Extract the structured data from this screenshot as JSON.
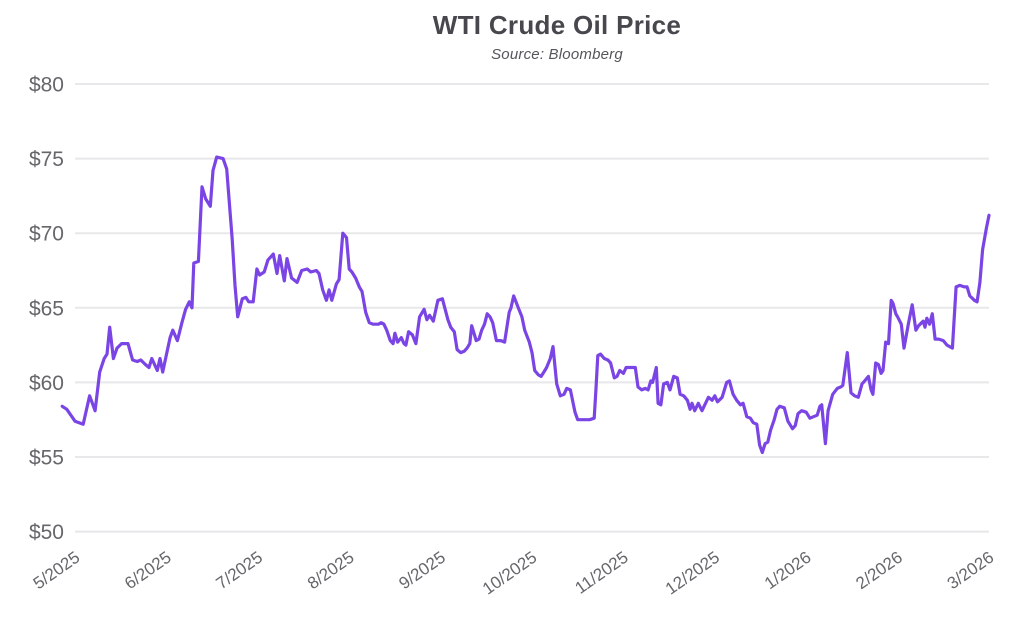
{
  "chart_data": {
    "type": "line",
    "title": "WTI Crude Oil Price",
    "subtitle": "Source: Bloomberg",
    "legend": "none",
    "grid": "horizontal-only",
    "grid_color": "#e8e8ea",
    "text_color": "#66666b",
    "y_axis": {
      "tick_labels": [
        "$80",
        "$75",
        "$70",
        "$65",
        "$60",
        "$55",
        "$50"
      ],
      "tick_values": [
        80,
        75,
        70,
        65,
        60,
        55,
        50
      ],
      "range": [
        50,
        80
      ],
      "unit": "USD per barrel"
    },
    "x_axis": {
      "tick_labels": [
        "5/2025",
        "6/2025",
        "7/2025",
        "8/2025",
        "9/2025",
        "10/2025",
        "11/2025",
        "12/2025",
        "1/2026",
        "2/2026",
        "3/2026"
      ],
      "tick_positions_months": [
        0,
        1,
        2,
        3,
        4,
        5,
        6,
        7,
        8,
        9,
        10
      ],
      "label_rotation_deg": -35
    },
    "series": [
      {
        "name": "WTI crude oil price (USD/barrel)",
        "color": "#7B45E6",
        "points": [
          [
            -0.14,
            58.4
          ],
          [
            -0.09,
            58.2
          ],
          [
            0,
            57.4
          ],
          [
            0.09,
            57.2
          ],
          [
            0.16,
            59.1
          ],
          [
            0.22,
            58.1
          ],
          [
            0.27,
            60.7
          ],
          [
            0.32,
            61.6
          ],
          [
            0.35,
            61.9
          ],
          [
            0.38,
            63.7
          ],
          [
            0.42,
            61.6
          ],
          [
            0.46,
            62.3
          ],
          [
            0.51,
            62.6
          ],
          [
            0.58,
            62.6
          ],
          [
            0.63,
            61.5
          ],
          [
            0.68,
            61.4
          ],
          [
            0.72,
            61.5
          ],
          [
            0.77,
            61.2
          ],
          [
            0.81,
            61
          ],
          [
            0.84,
            61.6
          ],
          [
            0.9,
            60.8
          ],
          [
            0.93,
            61.6
          ],
          [
            0.96,
            60.7
          ],
          [
            1.04,
            63
          ],
          [
            1.07,
            63.5
          ],
          [
            1.12,
            62.8
          ],
          [
            1.17,
            64
          ],
          [
            1.21,
            64.9
          ],
          [
            1.25,
            65.4
          ],
          [
            1.28,
            65
          ],
          [
            1.3,
            68
          ],
          [
            1.35,
            68.1
          ],
          [
            1.39,
            73.1
          ],
          [
            1.43,
            72.3
          ],
          [
            1.48,
            71.8
          ],
          [
            1.51,
            74.2
          ],
          [
            1.55,
            75.1
          ],
          [
            1.62,
            75
          ],
          [
            1.66,
            74.3
          ],
          [
            1.72,
            69.6
          ],
          [
            1.75,
            66.5
          ],
          [
            1.78,
            64.4
          ],
          [
            1.83,
            65.6
          ],
          [
            1.87,
            65.7
          ],
          [
            1.9,
            65.4
          ],
          [
            1.95,
            65.4
          ],
          [
            1.99,
            67.6
          ],
          [
            2.02,
            67.2
          ],
          [
            2.07,
            67.4
          ],
          [
            2.11,
            68.2
          ],
          [
            2.17,
            68.6
          ],
          [
            2.21,
            67.3
          ],
          [
            2.24,
            68.5
          ],
          [
            2.29,
            66.8
          ],
          [
            2.32,
            68.3
          ],
          [
            2.37,
            67
          ],
          [
            2.43,
            66.7
          ],
          [
            2.48,
            67.5
          ],
          [
            2.54,
            67.6
          ],
          [
            2.58,
            67.4
          ],
          [
            2.64,
            67.5
          ],
          [
            2.67,
            67.3
          ],
          [
            2.71,
            66.2
          ],
          [
            2.75,
            65.5
          ],
          [
            2.78,
            66.2
          ],
          [
            2.81,
            65.5
          ],
          [
            2.86,
            66.6
          ],
          [
            2.89,
            66.9
          ],
          [
            2.93,
            70
          ],
          [
            2.97,
            69.7
          ],
          [
            3,
            67.6
          ],
          [
            3.03,
            67.4
          ],
          [
            3.07,
            67
          ],
          [
            3.11,
            66.4
          ],
          [
            3.14,
            66.1
          ],
          [
            3.18,
            64.7
          ],
          [
            3.22,
            64
          ],
          [
            3.26,
            63.9
          ],
          [
            3.32,
            63.9
          ],
          [
            3.35,
            64
          ],
          [
            3.38,
            63.9
          ],
          [
            3.41,
            63.5
          ],
          [
            3.45,
            62.8
          ],
          [
            3.48,
            62.6
          ],
          [
            3.5,
            63.3
          ],
          [
            3.53,
            62.7
          ],
          [
            3.57,
            63
          ],
          [
            3.6,
            62.6
          ],
          [
            3.62,
            62.5
          ],
          [
            3.65,
            63.4
          ],
          [
            3.69,
            63.2
          ],
          [
            3.73,
            62.6
          ],
          [
            3.77,
            64.4
          ],
          [
            3.82,
            64.9
          ],
          [
            3.85,
            64.2
          ],
          [
            3.88,
            64.5
          ],
          [
            3.92,
            64.1
          ],
          [
            3.97,
            65.5
          ],
          [
            4.02,
            65.6
          ],
          [
            4.08,
            64.2
          ],
          [
            4.11,
            63.7
          ],
          [
            4.15,
            63.4
          ],
          [
            4.18,
            62.2
          ],
          [
            4.22,
            62
          ],
          [
            4.26,
            62.1
          ],
          [
            4.29,
            62.3
          ],
          [
            4.32,
            62.6
          ],
          [
            4.34,
            63.8
          ],
          [
            4.39,
            62.8
          ],
          [
            4.42,
            62.9
          ],
          [
            4.45,
            63.5
          ],
          [
            4.48,
            63.9
          ],
          [
            4.51,
            64.6
          ],
          [
            4.54,
            64.4
          ],
          [
            4.57,
            64
          ],
          [
            4.61,
            62.8
          ],
          [
            4.66,
            62.8
          ],
          [
            4.7,
            62.7
          ],
          [
            4.75,
            64.7
          ],
          [
            4.77,
            65
          ],
          [
            4.8,
            65.8
          ],
          [
            4.85,
            65
          ],
          [
            4.89,
            64.4
          ],
          [
            4.92,
            63.5
          ],
          [
            4.97,
            62.7
          ],
          [
            5,
            62
          ],
          [
            5.03,
            60.8
          ],
          [
            5.07,
            60.5
          ],
          [
            5.1,
            60.4
          ],
          [
            5.13,
            60.7
          ],
          [
            5.16,
            61
          ],
          [
            5.2,
            61.6
          ],
          [
            5.23,
            62.4
          ],
          [
            5.27,
            59.9
          ],
          [
            5.31,
            59.1
          ],
          [
            5.35,
            59.2
          ],
          [
            5.38,
            59.6
          ],
          [
            5.42,
            59.5
          ],
          [
            5.47,
            58
          ],
          [
            5.5,
            57.5
          ],
          [
            5.57,
            57.5
          ],
          [
            5.63,
            57.5
          ],
          [
            5.68,
            57.6
          ],
          [
            5.7,
            59.6
          ],
          [
            5.72,
            61.8
          ],
          [
            5.75,
            61.9
          ],
          [
            5.79,
            61.6
          ],
          [
            5.83,
            61.5
          ],
          [
            5.86,
            61.3
          ],
          [
            5.9,
            60.3
          ],
          [
            5.93,
            60.4
          ],
          [
            5.96,
            60.8
          ],
          [
            6,
            60.6
          ],
          [
            6.03,
            61
          ],
          [
            6.08,
            61
          ],
          [
            6.13,
            61
          ],
          [
            6.16,
            59.7
          ],
          [
            6.2,
            59.5
          ],
          [
            6.24,
            59.6
          ],
          [
            6.27,
            59.5
          ],
          [
            6.3,
            60.1
          ],
          [
            6.32,
            60
          ],
          [
            6.36,
            61
          ],
          [
            6.38,
            58.6
          ],
          [
            6.41,
            58.5
          ],
          [
            6.44,
            59.9
          ],
          [
            6.48,
            60
          ],
          [
            6.51,
            59.5
          ],
          [
            6.55,
            60.4
          ],
          [
            6.59,
            60.3
          ],
          [
            6.62,
            59.2
          ],
          [
            6.66,
            59.1
          ],
          [
            6.7,
            58.8
          ],
          [
            6.73,
            58.2
          ],
          [
            6.75,
            58.6
          ],
          [
            6.78,
            58.1
          ],
          [
            6.82,
            58.6
          ],
          [
            6.86,
            58.1
          ],
          [
            6.93,
            59
          ],
          [
            6.97,
            58.8
          ],
          [
            7,
            59.1
          ],
          [
            7.03,
            58.7
          ],
          [
            7.08,
            59
          ],
          [
            7.13,
            60
          ],
          [
            7.16,
            60.1
          ],
          [
            7.2,
            59.2
          ],
          [
            7.24,
            58.8
          ],
          [
            7.28,
            58.5
          ],
          [
            7.31,
            58.6
          ],
          [
            7.35,
            57.7
          ],
          [
            7.39,
            57.6
          ],
          [
            7.42,
            57.3
          ],
          [
            7.46,
            57.2
          ],
          [
            7.49,
            55.8
          ],
          [
            7.52,
            55.3
          ],
          [
            7.55,
            55.9
          ],
          [
            7.58,
            56
          ],
          [
            7.61,
            56.8
          ],
          [
            7.65,
            57.5
          ],
          [
            7.68,
            58.2
          ],
          [
            7.71,
            58.4
          ],
          [
            7.76,
            58.3
          ],
          [
            7.8,
            57.4
          ],
          [
            7.85,
            56.9
          ],
          [
            7.88,
            57.1
          ],
          [
            7.91,
            57.9
          ],
          [
            7.95,
            58.1
          ],
          [
            8,
            58
          ],
          [
            8.04,
            57.6
          ],
          [
            8.08,
            57.7
          ],
          [
            8.12,
            57.8
          ],
          [
            8.15,
            58.4
          ],
          [
            8.17,
            58.5
          ],
          [
            8.21,
            55.9
          ],
          [
            8.24,
            58.1
          ],
          [
            8.29,
            59.2
          ],
          [
            8.34,
            59.6
          ],
          [
            8.38,
            59.7
          ],
          [
            8.4,
            59.8
          ],
          [
            8.45,
            62
          ],
          [
            8.49,
            59.3
          ],
          [
            8.53,
            59.1
          ],
          [
            8.57,
            59
          ],
          [
            8.61,
            59.9
          ],
          [
            8.64,
            60.1
          ],
          [
            8.68,
            60.4
          ],
          [
            8.71,
            59.5
          ],
          [
            8.73,
            59.2
          ],
          [
            8.76,
            61.3
          ],
          [
            8.79,
            61.2
          ],
          [
            8.82,
            60.6
          ],
          [
            8.84,
            60.8
          ],
          [
            8.87,
            62.7
          ],
          [
            8.9,
            62.6
          ],
          [
            8.93,
            65.5
          ],
          [
            8.95,
            65.3
          ],
          [
            8.98,
            64.6
          ],
          [
            9,
            64.4
          ],
          [
            9.04,
            63.9
          ],
          [
            9.07,
            62.3
          ],
          [
            9.12,
            64
          ],
          [
            9.16,
            65.2
          ],
          [
            9.2,
            63.5
          ],
          [
            9.23,
            63.8
          ],
          [
            9.28,
            64.1
          ],
          [
            9.3,
            63.7
          ],
          [
            9.32,
            64.3
          ],
          [
            9.35,
            63.9
          ],
          [
            9.38,
            64.6
          ],
          [
            9.41,
            62.9
          ],
          [
            9.45,
            62.9
          ],
          [
            9.5,
            62.8
          ],
          [
            9.54,
            62.5
          ],
          [
            9.57,
            62.4
          ],
          [
            9.6,
            62.3
          ],
          [
            9.64,
            66.4
          ],
          [
            9.68,
            66.5
          ],
          [
            9.73,
            66.4
          ],
          [
            9.76,
            66.4
          ],
          [
            9.79,
            65.8
          ],
          [
            9.84,
            65.5
          ],
          [
            9.87,
            65.4
          ],
          [
            9.9,
            66.7
          ],
          [
            9.93,
            68.9
          ],
          [
            9.97,
            70.3
          ],
          [
            10,
            71.2
          ]
        ]
      }
    ]
  }
}
